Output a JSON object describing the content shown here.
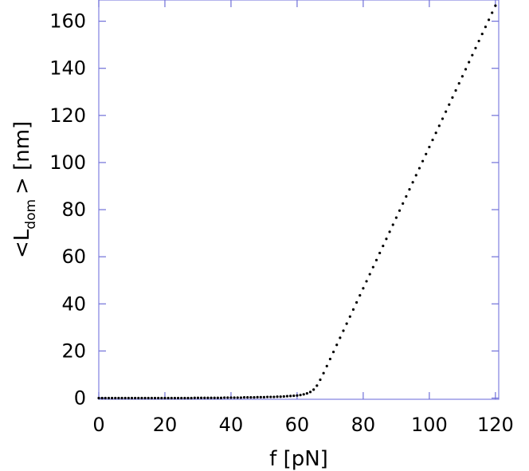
{
  "chart_data": {
    "type": "scatter",
    "title": "",
    "xlabel": "f [pN]",
    "ylabel": {
      "prefix": "<L",
      "subscript": "dom",
      "suffix": "> [nm]"
    },
    "xlim": [
      0,
      121
    ],
    "ylim": [
      -0.5,
      169
    ],
    "xticks": [
      0,
      20,
      40,
      60,
      80,
      100,
      120
    ],
    "yticks": [
      0,
      20,
      40,
      60,
      80,
      100,
      120,
      140,
      160
    ],
    "grid": false,
    "legend": "none",
    "colors": {
      "points": "#000000",
      "frame": "#8080e0",
      "ticks": "#7070d8"
    },
    "series": [
      {
        "x": [
          0,
          1,
          2,
          3,
          4,
          5,
          6,
          7,
          8,
          9,
          10,
          11,
          12,
          13,
          14,
          15,
          16,
          17,
          18,
          19,
          20,
          21,
          22,
          23,
          24,
          25,
          26,
          27,
          28,
          29,
          30,
          31,
          32,
          33,
          34,
          35,
          36,
          37,
          38,
          39,
          40,
          41,
          42,
          43,
          44,
          45,
          46,
          47,
          48,
          49,
          50,
          51,
          52,
          53,
          54,
          55,
          56,
          57,
          58,
          59,
          60,
          61,
          62,
          63,
          64,
          65,
          66,
          67,
          68,
          69,
          70,
          71,
          72,
          73,
          74,
          75,
          76,
          77,
          78,
          79,
          80,
          81,
          82,
          83,
          84,
          85,
          86,
          87,
          88,
          89,
          90,
          91,
          92,
          93,
          94,
          95,
          96,
          97,
          98,
          99,
          100,
          101,
          102,
          103,
          104,
          105,
          106,
          107,
          108,
          109,
          110,
          111,
          112,
          113,
          114,
          115,
          116,
          117,
          118,
          119,
          120
        ],
        "y": [
          0,
          0,
          0,
          0,
          0,
          0,
          0,
          0,
          0,
          0,
          0,
          0,
          0,
          0,
          0,
          0,
          0,
          0,
          0,
          0,
          0,
          0,
          0,
          0,
          0,
          0,
          0,
          0,
          0,
          0.1,
          0.1,
          0.1,
          0.1,
          0.1,
          0.1,
          0.1,
          0.1,
          0.1,
          0.2,
          0.2,
          0.2,
          0.2,
          0.2,
          0.2,
          0.3,
          0.3,
          0.3,
          0.3,
          0.4,
          0.4,
          0.4,
          0.5,
          0.5,
          0.5,
          0.6,
          0.6,
          0.7,
          0.8,
          0.9,
          1.0,
          1.1,
          1.3,
          1.6,
          2.0,
          2.6,
          3.6,
          5.3,
          7.8,
          10.6,
          13.6,
          16.6,
          19.6,
          22.6,
          25.6,
          28.6,
          31.6,
          34.6,
          37.6,
          40.6,
          43.6,
          46.6,
          49.6,
          52.6,
          55.6,
          58.6,
          61.6,
          64.6,
          67.6,
          70.6,
          73.6,
          76.6,
          79.6,
          82.6,
          85.6,
          88.6,
          91.6,
          94.6,
          97.6,
          100.6,
          103.6,
          106.6,
          109.6,
          112.6,
          115.6,
          118.6,
          121.6,
          124.6,
          127.6,
          130.6,
          133.6,
          136.6,
          139.6,
          142.6,
          145.6,
          148.6,
          151.6,
          154.6,
          157.6,
          160.6,
          163.6,
          166.6
        ]
      }
    ]
  }
}
